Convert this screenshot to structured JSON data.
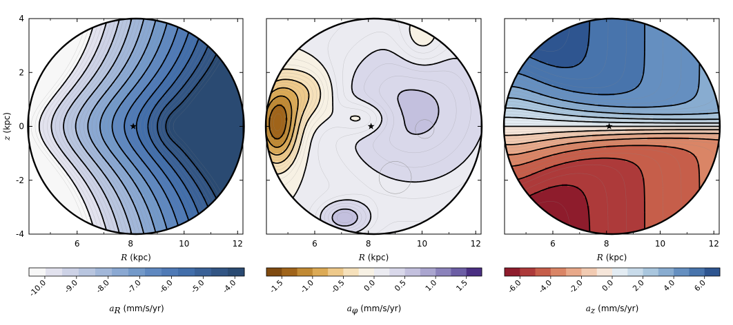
{
  "chart_data": [
    {
      "type": "contour",
      "quantity": "a_R",
      "xlabel_math": "R",
      "xlabel_unit": "(kpc)",
      "ylabel_math": "z",
      "ylabel_unit": "(kpc)",
      "xlim": [
        4.2,
        12.2
      ],
      "ylim": [
        -4,
        4
      ],
      "xticks": [
        6,
        8,
        10,
        12
      ],
      "xtick_labels": [
        "6",
        "8",
        "10",
        "12"
      ],
      "yticks": [
        4,
        2,
        0,
        -2,
        -4
      ],
      "ytick_labels": [
        "4",
        "2",
        "0",
        "-2",
        "-4"
      ],
      "sun": {
        "R": 8.1,
        "z": 0.0
      },
      "circle": {
        "center_R": 8.2,
        "center_z": 0.0,
        "radius_kpc": 4.0
      },
      "colorbar": {
        "label_math": "a",
        "label_sub": "R",
        "label_unit": "(mm/s/yr)",
        "ticks": [
          -10.0,
          -9.0,
          -8.0,
          -7.0,
          -6.0,
          -5.0,
          -4.0
        ],
        "tick_labels": [
          "-10.0",
          "-9.0",
          "-8.0",
          "-7.0",
          "-6.0",
          "-5.0",
          "-4.0"
        ],
        "range": [
          -10.5,
          -3.7
        ],
        "n_levels": 13,
        "colors": [
          "#f7f7f7",
          "#e2e2ee",
          "#cdd2e6",
          "#b8c5df",
          "#a2b7d9",
          "#8aa8d2",
          "#7399c9",
          "#5f88c0",
          "#4f7ab6",
          "#426eaa",
          "#3a6197",
          "#325584",
          "#2a4a72"
        ]
      }
    },
    {
      "type": "contour",
      "quantity": "a_phi",
      "xlabel_math": "R",
      "xlabel_unit": "(kpc)",
      "xlim": [
        4.2,
        12.2
      ],
      "ylim": [
        -4,
        4
      ],
      "xticks": [
        6,
        8,
        10,
        12
      ],
      "xtick_labels": [
        "6",
        "8",
        "10",
        "12"
      ],
      "sun": {
        "R": 8.1,
        "z": 0.0
      },
      "circle": {
        "center_R": 8.2,
        "center_z": 0.0,
        "radius_kpc": 4.0
      },
      "colorbar": {
        "label_math": "a",
        "label_sub": "φ",
        "label_unit": "(mm/s/yr)",
        "ticks": [
          -1.5,
          -1.0,
          -0.5,
          0.0,
          0.5,
          1.0,
          1.5
        ],
        "tick_labels": [
          "-1.5",
          "-1.0",
          "-0.5",
          "0.0",
          "0.5",
          "1.0",
          "1.5"
        ],
        "range": [
          -1.75,
          1.75
        ],
        "n_levels": 14,
        "colors": [
          "#7f4a10",
          "#a0641a",
          "#c18a34",
          "#dcaa55",
          "#eec98a",
          "#f6e1bb",
          "#f7f1e4",
          "#ebebf1",
          "#d9d8ea",
          "#c3c0de",
          "#aaa5cf",
          "#8b82bb",
          "#6c5ea5",
          "#4a2f82"
        ]
      }
    },
    {
      "type": "contour",
      "quantity": "a_z",
      "xlabel_math": "R",
      "xlabel_unit": "(kpc)",
      "xlim": [
        4.2,
        12.2
      ],
      "ylim": [
        -4,
        4
      ],
      "xticks": [
        6,
        8,
        10,
        12
      ],
      "xtick_labels": [
        "6",
        "8",
        "10",
        "12"
      ],
      "sun": {
        "R": 8.1,
        "z": 0.0
      },
      "circle": {
        "center_R": 8.2,
        "center_z": 0.0,
        "radius_kpc": 4.0
      },
      "colorbar": {
        "label_math": "a",
        "label_sub": "z",
        "label_unit": "(mm/s/yr)",
        "ticks": [
          -6.0,
          -4.0,
          -2.0,
          0.0,
          2.0,
          4.0,
          6.0
        ],
        "tick_labels": [
          "-6.0",
          "-4.0",
          "-2.0",
          "0.0",
          "2.0",
          "4.0",
          "6.0"
        ],
        "range": [
          -7,
          7
        ],
        "n_levels": 14,
        "colors": [
          "#8e1c2c",
          "#ad3a3a",
          "#c65e4a",
          "#da8566",
          "#e8a98a",
          "#f2cbb2",
          "#f6e6da",
          "#e3ecf3",
          "#c8dbea",
          "#a9c6de",
          "#88acd0",
          "#658fc0",
          "#4874ac",
          "#2e5590"
        ]
      }
    }
  ]
}
